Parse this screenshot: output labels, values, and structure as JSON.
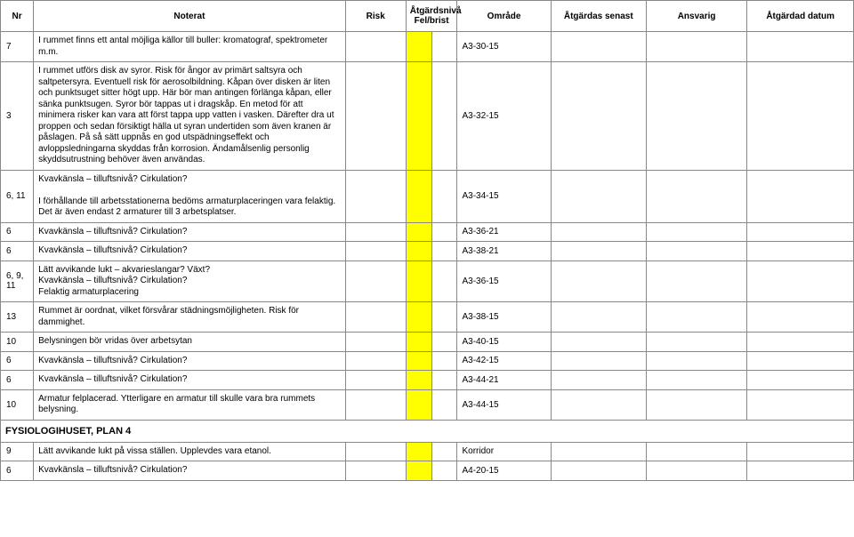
{
  "headers": {
    "nr": "Nr",
    "noterat": "Noterat",
    "risk": "Risk",
    "atskrub": "Åtgärdsnivå\nFel/brist",
    "omrade": "Område",
    "senast": "Åtgärdas senast",
    "ansvarig": "Ansvarig",
    "atgdatum": "Åtgärdad datum"
  },
  "rows": [
    {
      "nr": "7",
      "note": "I rummet finns ett antal möjliga källor till buller: kromatograf, spektrometer m.m.",
      "area": "A3-30-15",
      "c1": "yellow",
      "c2": ""
    },
    {
      "nr": "3",
      "note": "I rummet utförs disk av syror. Risk för ångor av primärt saltsyra och saltpetersyra. Eventuell risk för aerosolbildning. Kåpan över disken är liten och punktsuget sitter högt upp. Här bör man antingen förlänga kåpan, eller sänka punktsugen. Syror bör tappas ut i dragskåp. En metod för att minimera risker kan vara att först tappa upp vatten i vasken. Därefter dra ut proppen och sedan försiktigt hälla ut syran undertiden som även kranen är påslagen. På så sätt uppnås en god utspädningseffekt och avloppsledningarna skyddas från korrosion. Ändamålsenlig personlig skyddsutrustning behöver även användas.",
      "area": "A3-32-15",
      "c1": "yellow",
      "c2": ""
    },
    {
      "nr": "6, 11",
      "note": "Kvavkänsla – tilluftsnivå? Cirkulation?\n\nI förhållande till arbetsstationerna bedöms armaturplaceringen vara felaktig. Det är även endast 2 armaturer till 3 arbetsplatser.",
      "area": "A3-34-15",
      "c1": "yellow",
      "c2": ""
    },
    {
      "nr": "6",
      "note": "Kvavkänsla – tilluftsnivå? Cirkulation?",
      "area": "A3-36-21",
      "c1": "yellow",
      "c2": ""
    },
    {
      "nr": "6",
      "note": "Kvavkänsla – tilluftsnivå? Cirkulation?",
      "area": "A3-38-21",
      "c1": "yellow",
      "c2": ""
    },
    {
      "nr": "6, 9, 11",
      "note": "Lätt avvikande lukt – akvarieslangar? Växt?\nKvavkänsla – tilluftsnivå? Cirkulation?\nFelaktig armaturplacering",
      "area": "A3-36-15",
      "c1": "yellow",
      "c2": ""
    },
    {
      "nr": "13",
      "note": "Rummet är oordnat, vilket försvårar städningsmöjligheten. Risk för dammighet.",
      "area": "A3-38-15",
      "c1": "yellow",
      "c2": ""
    },
    {
      "nr": "10",
      "note": "Belysningen bör vridas över arbetsytan",
      "area": "A3-40-15",
      "c1": "yellow",
      "c2": ""
    },
    {
      "nr": "6",
      "note": "Kvavkänsla – tilluftsnivå? Cirkulation?",
      "area": "A3-42-15",
      "c1": "yellow",
      "c2": ""
    },
    {
      "nr": "6",
      "note": "Kvavkänsla – tilluftsnivå? Cirkulation?",
      "area": "A3-44-21",
      "c1": "yellow",
      "c2": ""
    },
    {
      "nr": "10",
      "note": "Armatur felplacerad. Ytterligare en armatur till skulle vara bra rummets belysning.",
      "area": "A3-44-15",
      "c1": "yellow",
      "c2": ""
    },
    {
      "section": "FYSIOLOGIHUSET, PLAN 4"
    },
    {
      "nr": "9",
      "note": "Lätt avvikande lukt på vissa ställen. Upplevdes vara etanol.",
      "area": "Korridor",
      "c1": "yellow",
      "c2": ""
    },
    {
      "nr": "6",
      "note": "Kvavkänsla – tilluftsnivå? Cirkulation?",
      "area": "A4-20-15",
      "c1": "yellow",
      "c2": ""
    }
  ]
}
